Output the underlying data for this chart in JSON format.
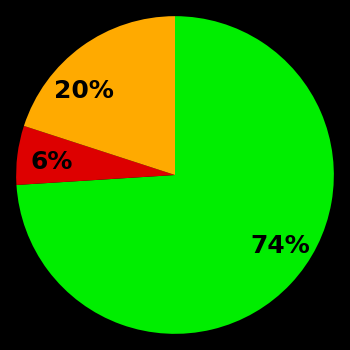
{
  "slices": [
    74,
    6,
    20
  ],
  "colors": [
    "#00ee00",
    "#dd0000",
    "#ffaa00"
  ],
  "labels": [
    "74%",
    "6%",
    "20%"
  ],
  "background_color": "#000000",
  "label_fontsize": 18,
  "label_fontweight": "bold",
  "startangle": 90,
  "labeldistance": 0.65,
  "figsize": [
    3.5,
    3.5
  ],
  "dpi": 100
}
